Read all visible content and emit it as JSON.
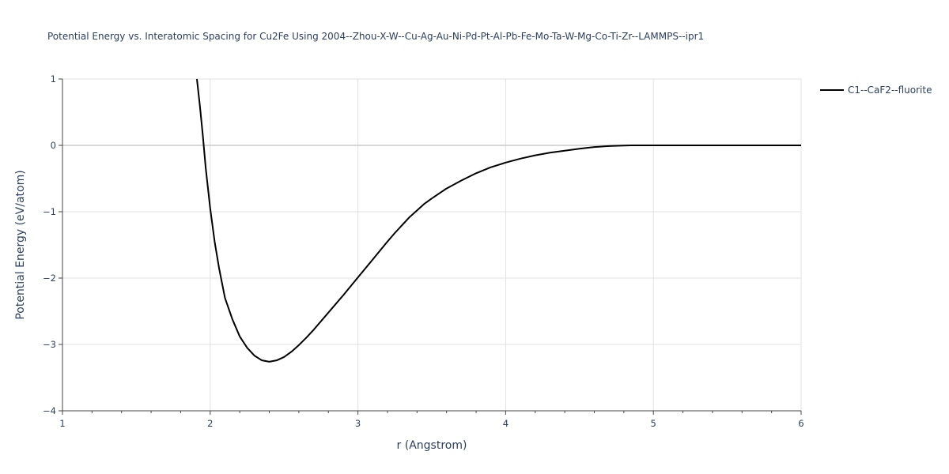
{
  "chart_data": {
    "type": "line",
    "title": "Potential Energy vs. Interatomic Spacing for Cu2Fe Using 2004--Zhou-X-W--Cu-Ag-Au-Ni-Pd-Pt-Al-Pb-Fe-Mo-Ta-W-Mg-Co-Ti-Zr--LAMMPS--ipr1",
    "xlabel": "r (Angstrom)",
    "ylabel": "Potential Energy (eV/atom)",
    "xlim": [
      1,
      6
    ],
    "ylim": [
      -4,
      1
    ],
    "x_ticks": [
      1,
      2,
      3,
      4,
      5,
      6
    ],
    "x_tick_labels": [
      "1",
      "2",
      "3",
      "4",
      "5",
      "6"
    ],
    "y_ticks": [
      -4,
      -3,
      -2,
      -1,
      0,
      1
    ],
    "y_tick_labels": [
      "−4",
      "−3",
      "−2",
      "−1",
      "0",
      "1"
    ],
    "grid": true,
    "zero_line": true,
    "legend_position": "top-right",
    "series": [
      {
        "name": "C1--CaF2--fluorite",
        "color": "#000000",
        "x": [
          1.91,
          1.93,
          1.95,
          1.97,
          2.0,
          2.03,
          2.06,
          2.1,
          2.15,
          2.2,
          2.25,
          2.3,
          2.35,
          2.4,
          2.45,
          2.5,
          2.55,
          2.6,
          2.65,
          2.7,
          2.8,
          2.9,
          3.0,
          3.1,
          3.2,
          3.25,
          3.3,
          3.35,
          3.4,
          3.45,
          3.5,
          3.6,
          3.7,
          3.8,
          3.9,
          4.0,
          4.1,
          4.2,
          4.3,
          4.4,
          4.5,
          4.6,
          4.7,
          4.8,
          4.85,
          5.0,
          5.5,
          6.0
        ],
        "y": [
          1.0,
          0.6,
          0.15,
          -0.35,
          -0.95,
          -1.45,
          -1.85,
          -2.3,
          -2.62,
          -2.88,
          -3.05,
          -3.17,
          -3.24,
          -3.26,
          -3.24,
          -3.19,
          -3.11,
          -3.01,
          -2.9,
          -2.78,
          -2.52,
          -2.26,
          -1.99,
          -1.72,
          -1.45,
          -1.32,
          -1.2,
          -1.08,
          -0.98,
          -0.88,
          -0.8,
          -0.65,
          -0.53,
          -0.42,
          -0.33,
          -0.26,
          -0.2,
          -0.15,
          -0.11,
          -0.08,
          -0.05,
          -0.025,
          -0.01,
          -0.003,
          0.0,
          0.0,
          0.0,
          0.0
        ]
      }
    ]
  }
}
